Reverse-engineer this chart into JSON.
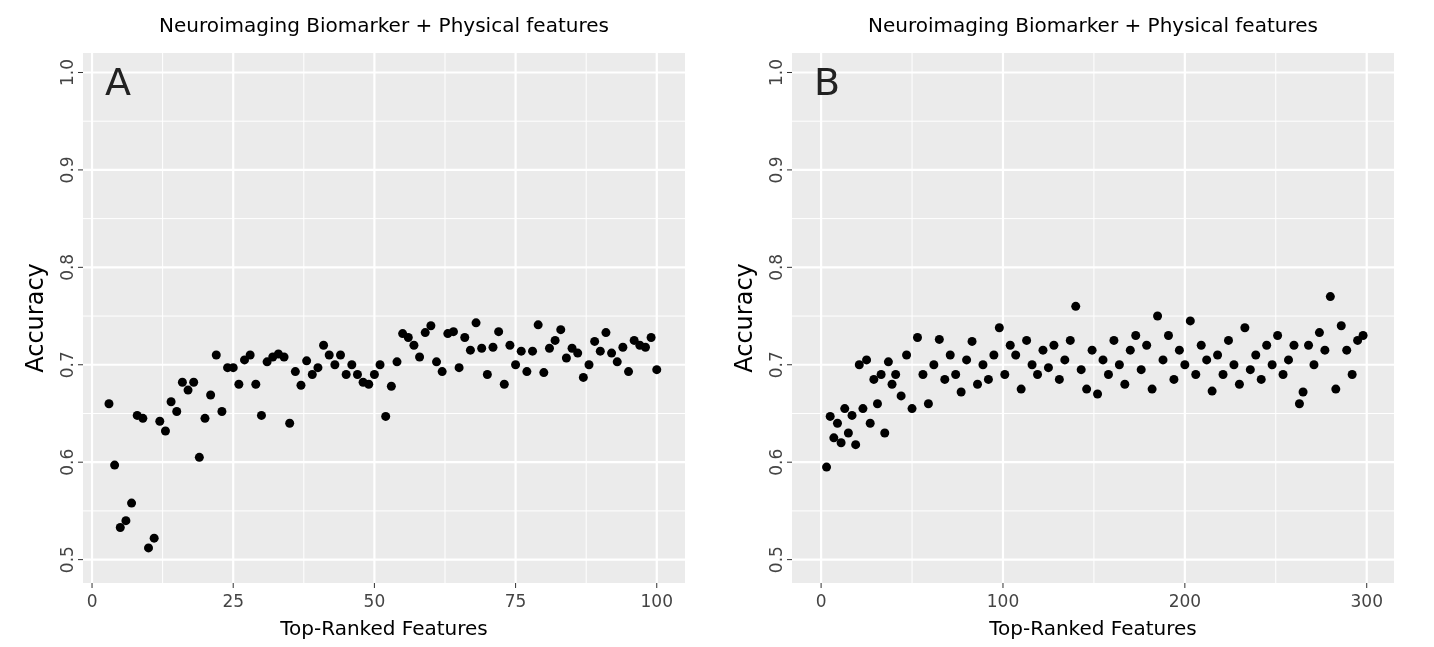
{
  "chart_data": [
    {
      "type": "scatter",
      "title": "Neuroimaging Biomarker + Physical features",
      "xlabel": "Top-Ranked Features",
      "ylabel": "Accuracy",
      "annotations": [
        "A"
      ],
      "xlim": [
        -1.6,
        105
      ],
      "ylim": [
        0.476,
        1.02
      ],
      "xticks": [
        0,
        25,
        50,
        75,
        100
      ],
      "yticks": [
        0.5,
        0.6,
        0.7,
        0.8,
        0.9,
        {
          "value": 1,
          "label": "1.0"
        }
      ],
      "grid": true,
      "marker": "circle",
      "series": [
        {
          "color": "#000000",
          "x": [
            3,
            4,
            5,
            6,
            7,
            8,
            9,
            10,
            11,
            12,
            13,
            14,
            15,
            16,
            17,
            18,
            19,
            20,
            21,
            22,
            23,
            24,
            25,
            26,
            27,
            28,
            29,
            30,
            31,
            32,
            33,
            34,
            35,
            36,
            37,
            38,
            39,
            40,
            41,
            42,
            43,
            44,
            45,
            46,
            47,
            48,
            49,
            50,
            51,
            52,
            53,
            54,
            55,
            56,
            57,
            58,
            59,
            60,
            61,
            62,
            63,
            64,
            65,
            66,
            67,
            68,
            69,
            70,
            71,
            72,
            73,
            74,
            75,
            76,
            77,
            78,
            79,
            80,
            81,
            82,
            83,
            84,
            85,
            86,
            87,
            88,
            89,
            90,
            91,
            92,
            93,
            94,
            95,
            96,
            97,
            98,
            99,
            100
          ],
          "values": [
            0.66,
            0.597,
            0.533,
            0.54,
            0.558,
            0.648,
            0.645,
            0.512,
            0.522,
            0.642,
            0.632,
            0.662,
            0.652,
            0.682,
            0.674,
            0.682,
            0.605,
            0.645,
            0.669,
            0.71,
            0.652,
            0.697,
            0.697,
            0.68,
            0.705,
            0.71,
            0.68,
            0.648,
            0.703,
            0.708,
            0.711,
            0.708,
            0.64,
            0.693,
            0.679,
            0.704,
            0.69,
            0.697,
            0.72,
            0.71,
            0.7,
            0.71,
            0.69,
            0.7,
            0.69,
            0.682,
            0.68,
            0.69,
            0.7,
            0.647,
            0.678,
            0.703,
            0.732,
            0.728,
            0.72,
            0.708,
            0.733,
            0.74,
            0.703,
            0.693,
            0.732,
            0.734,
            0.697,
            0.728,
            0.715,
            0.743,
            0.717,
            0.69,
            0.718,
            0.734,
            0.68,
            0.72,
            0.7,
            0.714,
            0.693,
            0.714,
            0.741,
            0.692,
            0.717,
            0.725,
            0.736,
            0.707,
            0.717,
            0.712,
            0.687,
            0.7,
            0.724,
            0.714,
            0.733,
            0.712,
            0.703,
            0.718,
            0.693,
            0.725,
            0.72,
            0.718,
            0.728,
            0.695
          ]
        }
      ]
    },
    {
      "type": "scatter",
      "title": "Neuroimaging Biomarker + Physical features",
      "xlabel": "Top-Ranked Features",
      "ylabel": "Accuracy",
      "annotations": [
        "B"
      ],
      "xlim": [
        -16,
        315
      ],
      "ylim": [
        0.476,
        1.02
      ],
      "xticks": [
        0,
        100,
        200,
        300
      ],
      "yticks": [
        0.5,
        0.6,
        0.7,
        0.8,
        0.9,
        {
          "value": 1,
          "label": "1.0"
        }
      ],
      "grid": true,
      "marker": "circle",
      "series": [
        {
          "color": "#000000",
          "x": [
            3,
            5,
            7,
            9,
            11,
            13,
            15,
            17,
            19,
            21,
            23,
            25,
            27,
            29,
            31,
            33,
            35,
            37,
            39,
            41,
            44,
            47,
            50,
            53,
            56,
            59,
            62,
            65,
            68,
            71,
            74,
            77,
            80,
            83,
            86,
            89,
            92,
            95,
            98,
            101,
            104,
            107,
            110,
            113,
            116,
            119,
            122,
            125,
            128,
            131,
            134,
            137,
            140,
            143,
            146,
            149,
            152,
            155,
            158,
            161,
            164,
            167,
            170,
            173,
            176,
            179,
            182,
            185,
            188,
            191,
            194,
            197,
            200,
            203,
            206,
            209,
            212,
            215,
            218,
            221,
            224,
            227,
            230,
            233,
            236,
            239,
            242,
            245,
            248,
            251,
            254,
            257,
            260,
            263,
            265,
            268,
            271,
            274,
            277,
            280,
            283,
            286,
            289,
            292,
            295,
            298
          ],
          "values": [
            0.595,
            0.647,
            0.625,
            0.64,
            0.62,
            0.655,
            0.63,
            0.648,
            0.618,
            0.7,
            0.655,
            0.705,
            0.64,
            0.685,
            0.66,
            0.69,
            0.63,
            0.703,
            0.68,
            0.69,
            0.668,
            0.71,
            0.655,
            0.728,
            0.69,
            0.66,
            0.7,
            0.726,
            0.685,
            0.71,
            0.69,
            0.672,
            0.705,
            0.724,
            0.68,
            0.7,
            0.685,
            0.71,
            0.738,
            0.69,
            0.72,
            0.71,
            0.675,
            0.725,
            0.7,
            0.69,
            0.715,
            0.697,
            0.72,
            0.685,
            0.705,
            0.725,
            0.76,
            0.695,
            0.675,
            0.715,
            0.67,
            0.705,
            0.69,
            0.725,
            0.7,
            0.68,
            0.715,
            0.73,
            0.695,
            0.72,
            0.675,
            0.75,
            0.705,
            0.73,
            0.685,
            0.715,
            0.7,
            0.745,
            0.69,
            0.72,
            0.705,
            0.673,
            0.71,
            0.69,
            0.725,
            0.7,
            0.68,
            0.738,
            0.695,
            0.71,
            0.685,
            0.72,
            0.7,
            0.73,
            0.69,
            0.705,
            0.72,
            0.66,
            0.672,
            0.72,
            0.7,
            0.733,
            0.715,
            0.77,
            0.675,
            0.74,
            0.715,
            0.69,
            0.725,
            0.73
          ]
        }
      ]
    }
  ]
}
